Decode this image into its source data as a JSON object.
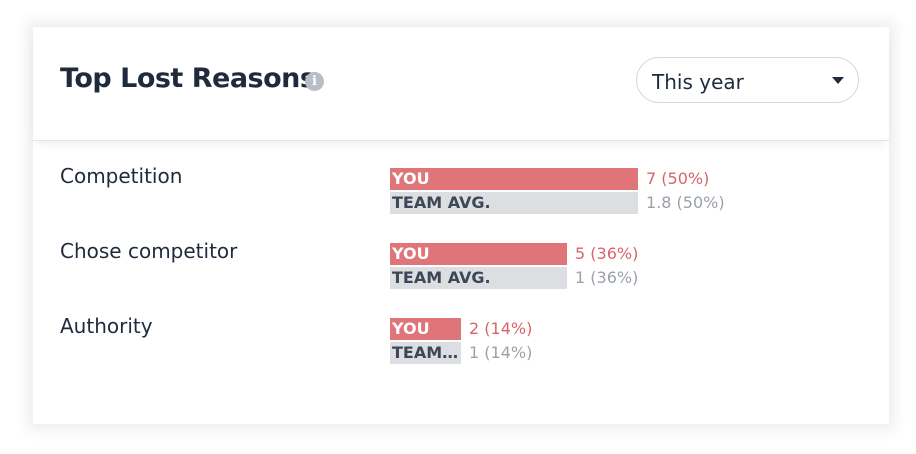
{
  "header": {
    "title": "Top Lost Reasons",
    "info_icon": "info-icon",
    "period_select": {
      "value": "This year"
    }
  },
  "colors": {
    "you_bar": "#df7579",
    "you_text": "#d8646a",
    "team_bar": "#dcdee2",
    "team_text": "#9ba1aa",
    "title": "#1f2b3d"
  },
  "legend": {
    "you_label": "YOU",
    "team_label": "TEAM AVG."
  },
  "reasons": [
    {
      "label": "Competition",
      "you_value": 7,
      "you_text": "7 (50%)",
      "team_value": 1.8,
      "team_text": "1.8 (50%)"
    },
    {
      "label": "Chose competitor",
      "you_value": 5,
      "you_text": "5 (36%)",
      "team_value": 1,
      "team_text": "1 (36%)"
    },
    {
      "label": "Authority",
      "you_value": 2,
      "you_text": "2 (14%)",
      "team_value": 1,
      "team_text": "1 (14%)"
    }
  ],
  "chart_data": {
    "type": "bar",
    "orientation": "horizontal",
    "categories": [
      "Competition",
      "Chose competitor",
      "Authority"
    ],
    "series": [
      {
        "name": "YOU",
        "values": [
          7,
          5,
          2
        ],
        "percent": [
          50,
          36,
          14
        ]
      },
      {
        "name": "TEAM AVG.",
        "values": [
          1.8,
          1,
          1
        ],
        "percent": [
          50,
          36,
          14
        ]
      }
    ]
  }
}
